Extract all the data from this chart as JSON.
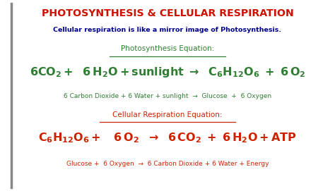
{
  "bg_color": "#ffffff",
  "title_color": "#cc1100",
  "subtitle_color": "#00008b",
  "green_color": "#2e7d32",
  "red_color": "#cc2200",
  "border_color": "#888888",
  "title": "PHOTOSYNTHESIS & CELLULAR RESPIRATION",
  "subtitle": "Cellular respiration is like a mirror image of Photosynthesis.",
  "photo_label": "Photosynthesis Equation:",
  "cell_label": "Cellular Respiration Equation:",
  "photo_chem": "$\\mathbf{6CO_2 +\\ \\ 6\\,H_2O + sunlight\\ \\rightarrow\\ \\ C_6H_{12}O_6\\ +\\ 6\\,O_2}$",
  "photo_word": "6 Carbon Dioxide + 6 Water + sunlight  →  Glucose  +  6 Oxygen",
  "cell_chem": "$\\mathbf{C_6H_{12}O_6 +\\ \\ \\ 6\\,O_2\\ \\ \\rightarrow\\ \\ 6\\,CO_2\\ +\\ 6\\,H_2O + ATP}$",
  "cell_word": "Glucose +  6 Oxygen  →  6 Carbon Dioxide + 6 Water + Energy"
}
